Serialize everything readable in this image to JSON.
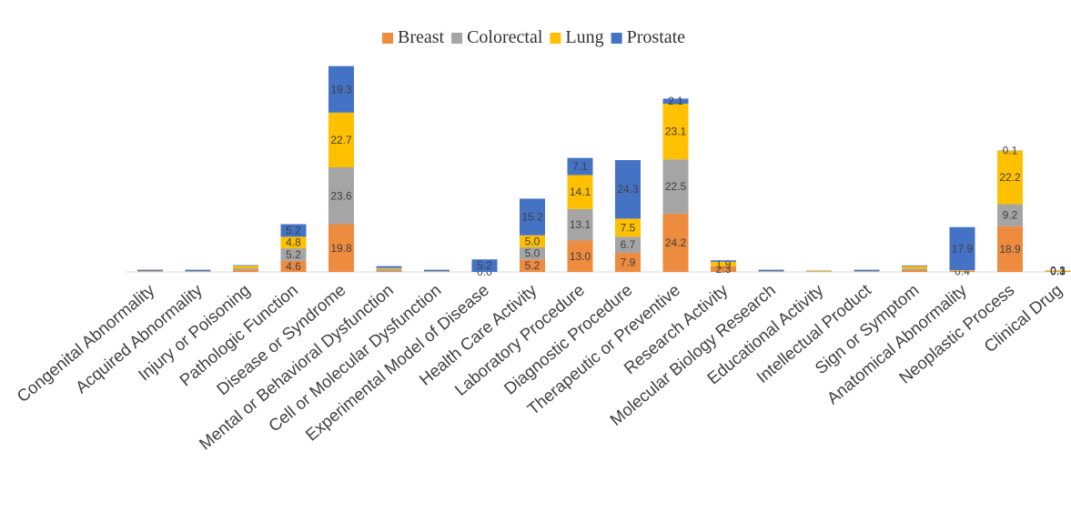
{
  "chart_data": {
    "type": "bar",
    "stacked": true,
    "title": "",
    "xlabel": "",
    "ylabel": "",
    "legend_position": "top",
    "grid": false,
    "ylim": [
      0,
      90
    ],
    "categories": [
      "Congenital Abnormality",
      "Acquired Abnormality",
      "Injury or Poisoning",
      "Pathologic Function",
      "Disease or Syndrome",
      "Mental or Behavioral Dysfunction",
      "Cell or Molecular Dysfunction",
      "Experimental Model of Disease",
      "Health Care Activity",
      "Laboratory Procedure",
      "Diagnostic Procedure",
      "Therapeutic or Preventive",
      "Research Activity",
      "Molecular Biology Research",
      "Educational Activity",
      "Intellectual Product",
      "Sign or Symptom",
      "Anatomical Abnormality",
      "Neoplastic Process",
      "Clinical Drug"
    ],
    "series": [
      {
        "name": "Breast",
        "color": "#ED8B3F",
        "values": [
          0.2,
          0.1,
          0.9,
          4.6,
          19.8,
          0.4,
          0.1,
          0.0,
          5.2,
          13.0,
          7.9,
          24.2,
          2.3,
          0.1,
          0.1,
          0.1,
          0.8,
          0.4,
          18.9,
          0.3
        ],
        "labels": [
          null,
          null,
          null,
          "4.6",
          "19.8",
          null,
          null,
          "0.0",
          "5.2",
          "13.0",
          "7.9",
          "24.2",
          "2.3",
          null,
          null,
          null,
          null,
          "0.4",
          "18.9",
          "0.3"
        ]
      },
      {
        "name": "Colorectal",
        "color": "#A5A5A5",
        "values": [
          0.1,
          0.1,
          0.6,
          5.2,
          23.6,
          0.8,
          0.1,
          0.0,
          5.0,
          13.1,
          6.7,
          22.5,
          0.0,
          0.1,
          0.1,
          0.1,
          0.6,
          0.1,
          9.2,
          0.1
        ],
        "labels": [
          null,
          null,
          null,
          "5.2",
          "23.6",
          null,
          null,
          null,
          "5.0",
          "13.1",
          "6.7",
          "22.5",
          null,
          null,
          null,
          null,
          null,
          null,
          "9.2",
          "0.1"
        ]
      },
      {
        "name": "Lung",
        "color": "#FFC000",
        "values": [
          0.1,
          0.1,
          1.0,
          4.8,
          22.7,
          0.4,
          0.1,
          0.0,
          5.0,
          14.1,
          7.5,
          23.1,
          1.9,
          0.1,
          0.3,
          0.1,
          1.0,
          0.2,
          22.2,
          0.3
        ],
        "labels": [
          null,
          null,
          null,
          "4.8",
          "22.7",
          null,
          null,
          null,
          "5.0",
          "14.1",
          "7.5",
          "23.1",
          "1.9",
          null,
          null,
          null,
          null,
          null,
          "22.2",
          "0.3"
        ]
      },
      {
        "name": "Prostate",
        "color": "#4472C4",
        "values": [
          0.5,
          0.6,
          0.3,
          5.2,
          19.3,
          0.8,
          0.6,
          5.2,
          15.2,
          7.1,
          24.3,
          2.1,
          0.6,
          0.6,
          0.1,
          0.6,
          0.3,
          17.9,
          0.1,
          0.0
        ],
        "labels": [
          null,
          null,
          null,
          "5.2",
          "19.3",
          null,
          null,
          "5.2",
          "15.2",
          "7.1",
          "24.3",
          "2.1",
          null,
          null,
          null,
          null,
          null,
          "17.9",
          "0.1",
          null
        ]
      }
    ]
  }
}
